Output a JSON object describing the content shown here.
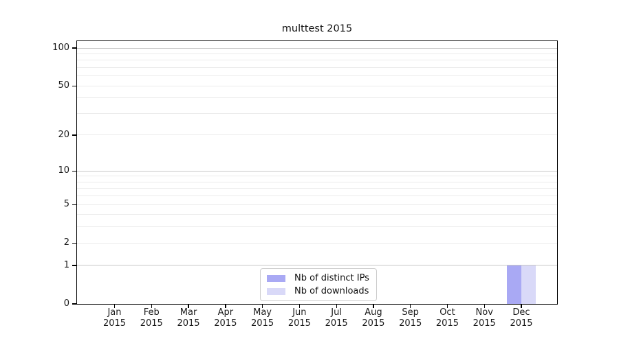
{
  "chart_data": {
    "type": "bar",
    "title": "multtest 2015",
    "year": "2015",
    "categories": [
      "Jan",
      "Feb",
      "Mar",
      "Apr",
      "May",
      "Jun",
      "Jul",
      "Aug",
      "Sep",
      "Oct",
      "Nov",
      "Dec"
    ],
    "series": [
      {
        "name": "Nb of distinct IPs",
        "color": "#a9a9f4",
        "values": [
          0,
          0,
          0,
          0,
          0,
          0,
          0,
          0,
          0,
          0,
          0,
          1
        ]
      },
      {
        "name": "Nb of downloads",
        "color": "#d9d9f8",
        "values": [
          0,
          0,
          0,
          0,
          0,
          0,
          0,
          0,
          0,
          0,
          0,
          1
        ]
      }
    ],
    "y_ticks": [
      0,
      1,
      2,
      5,
      10,
      20,
      50,
      100
    ],
    "ylim": [
      0,
      100
    ],
    "scale": "log1p",
    "grid": true,
    "gridlines": {
      "major": [
        1,
        10,
        100
      ],
      "minor": [
        2,
        3,
        4,
        5,
        6,
        7,
        8,
        9,
        20,
        30,
        40,
        50,
        60,
        70,
        80,
        90
      ]
    },
    "legend_position": "bottom-center"
  },
  "colors": {
    "background": "#ffffff",
    "axis": "#000000",
    "grid_major": "#c6c6c6",
    "grid_minor": "#ebebeb",
    "legend_border": "#cccccc",
    "text": "#1a1a1a"
  }
}
